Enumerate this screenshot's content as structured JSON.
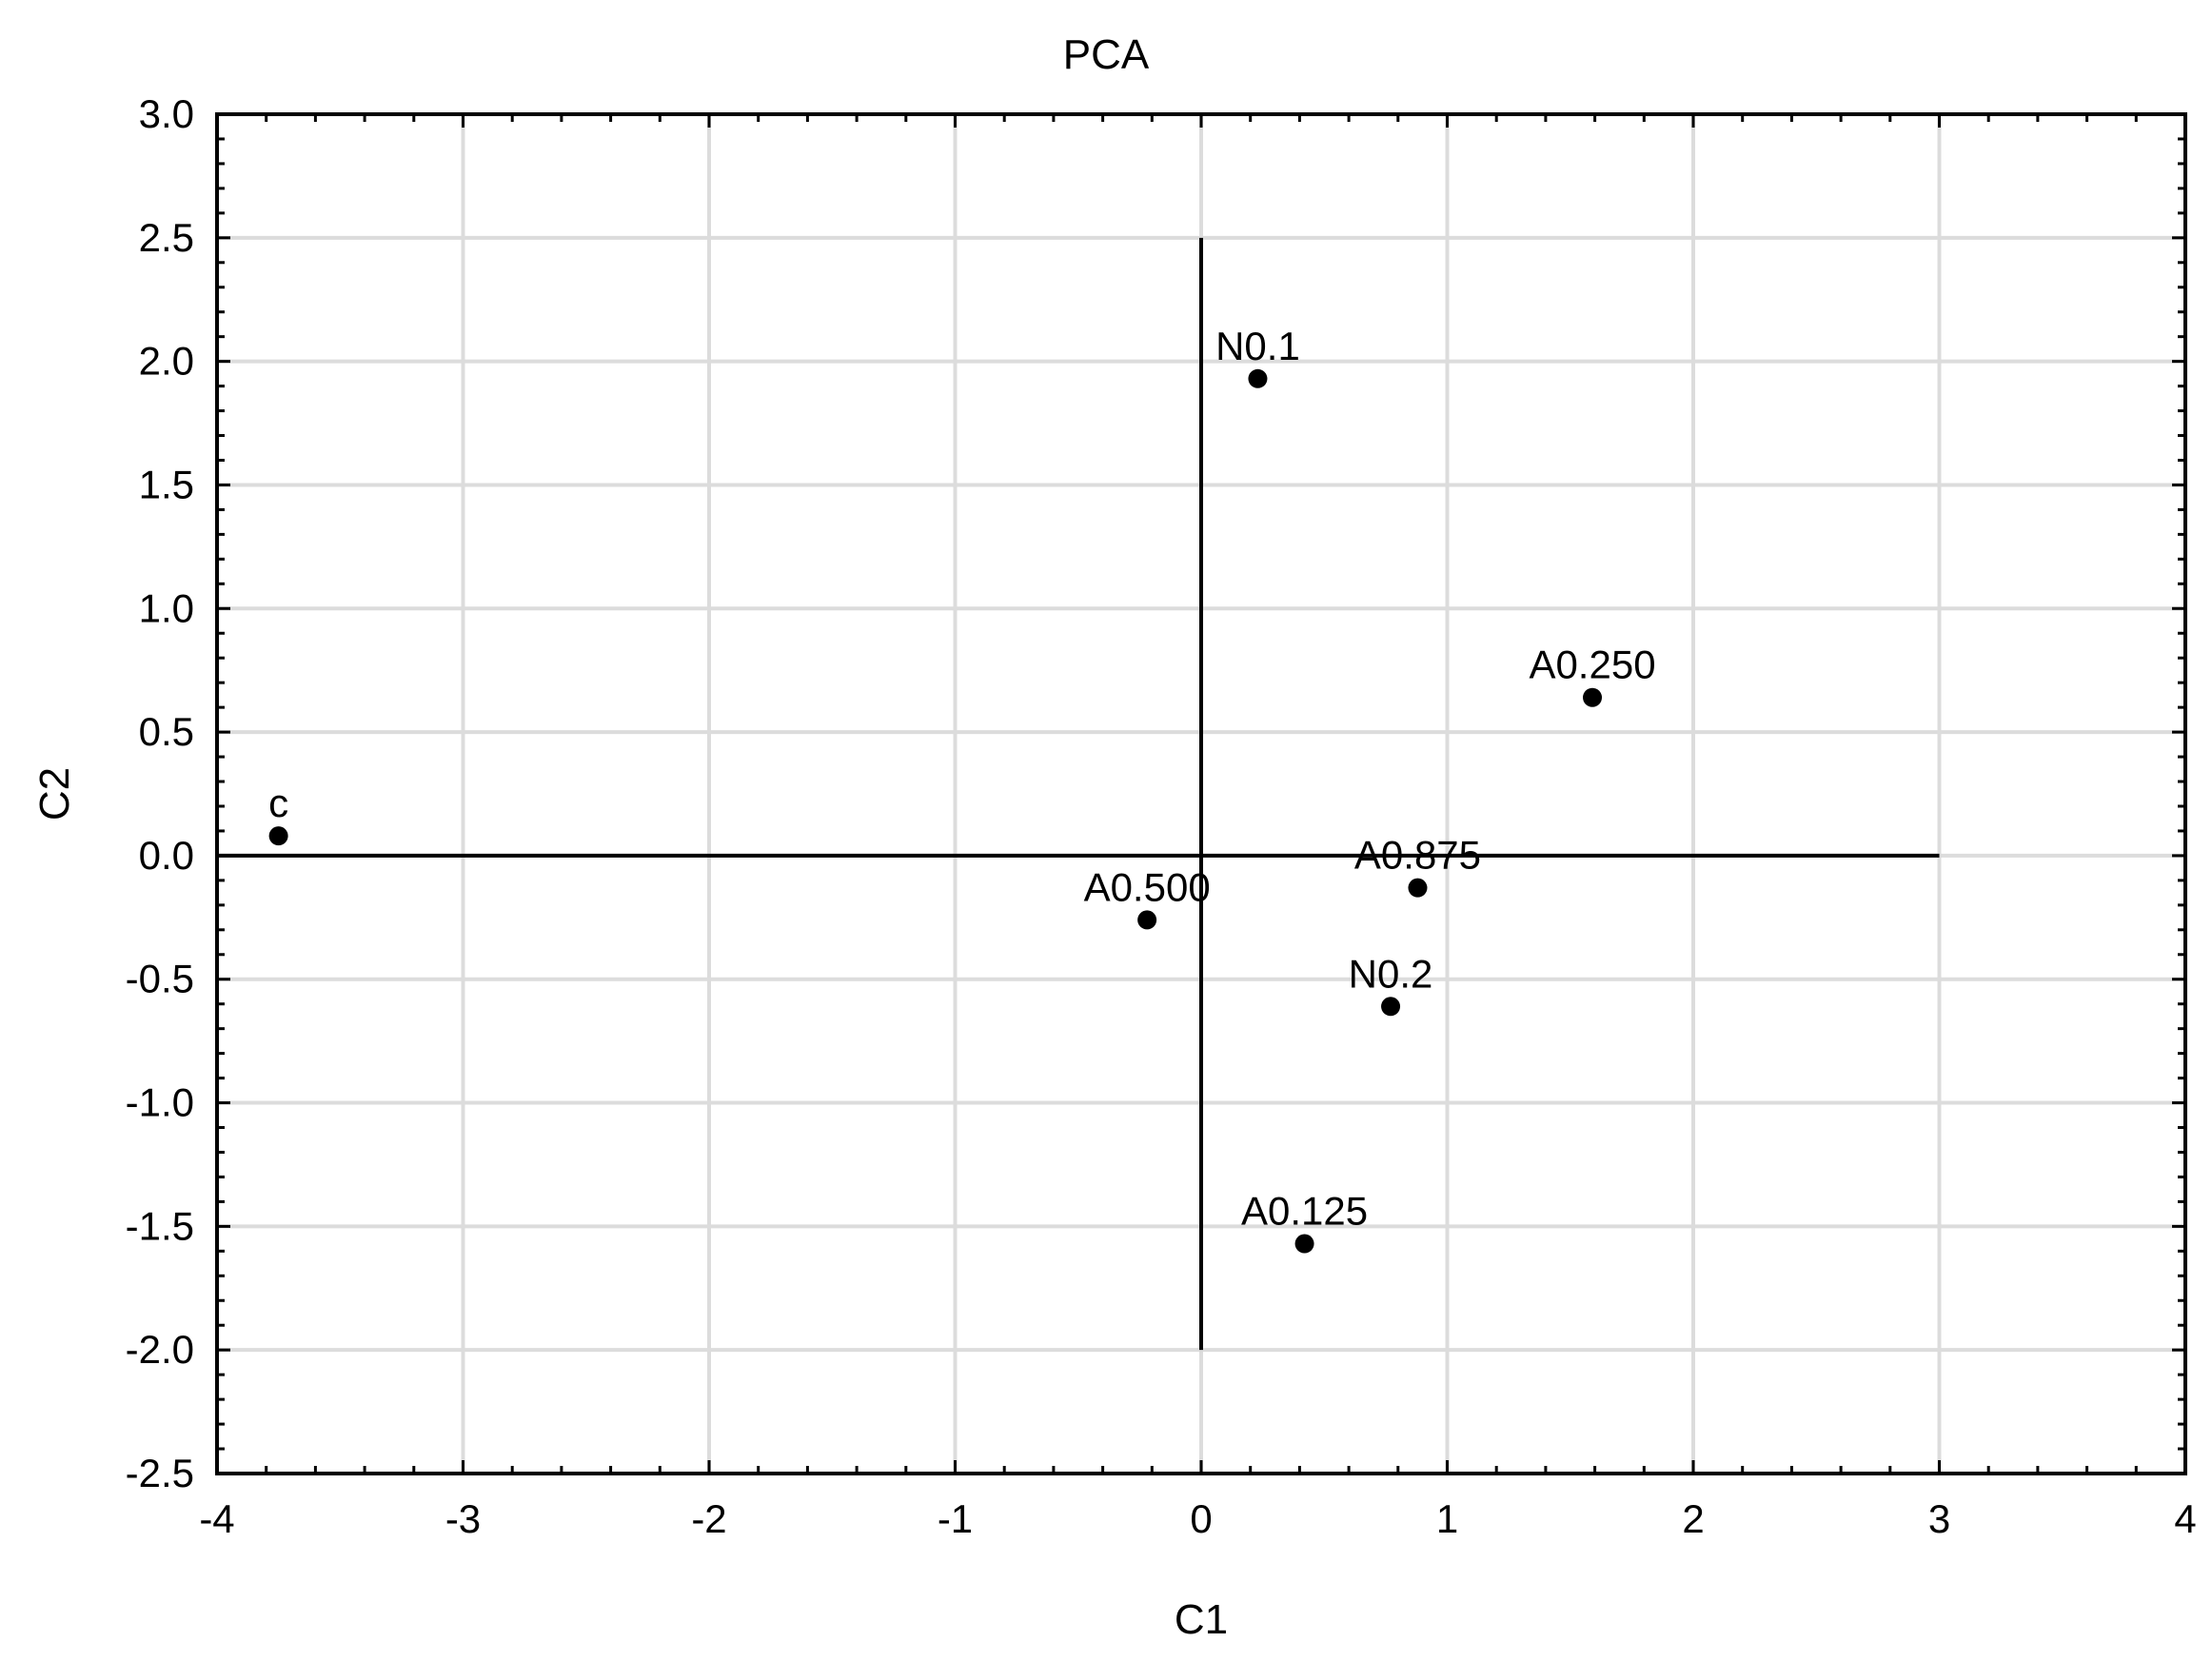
{
  "chart_data": {
    "type": "scatter",
    "title": "PCA",
    "xlabel": "C1",
    "ylabel": "C2",
    "xlim": [
      -4,
      4
    ],
    "ylim": [
      -2.5,
      3.0
    ],
    "grid": true,
    "x_ticks": [
      "-4",
      "-3",
      "-2",
      "-1",
      "0",
      "1",
      "2",
      "3",
      "4"
    ],
    "y_ticks": [
      "3.0",
      "2.5",
      "2.0",
      "1.5",
      "1.0",
      "0.5",
      "0.0",
      "-0.5",
      "-1.0",
      "-1.5",
      "-2.0",
      "-2.5"
    ],
    "reference_lines": {
      "vertical": {
        "x": 0,
        "y_from": -2.0,
        "y_to": 2.5
      },
      "horizontal": {
        "y": 0,
        "x_from": -4,
        "x_to": 3
      }
    },
    "points": [
      {
        "label": "c",
        "x": -3.75,
        "y": 0.08
      },
      {
        "label": "N0.1",
        "x": 0.23,
        "y": 1.93
      },
      {
        "label": "A0.250",
        "x": 1.59,
        "y": 0.64
      },
      {
        "label": "A0.875",
        "x": 0.88,
        "y": -0.13
      },
      {
        "label": "A0.500",
        "x": -0.22,
        "y": -0.26
      },
      {
        "label": "N0.2",
        "x": 0.77,
        "y": -0.61
      },
      {
        "label": "A0.125",
        "x": 0.42,
        "y": -1.57
      }
    ]
  }
}
